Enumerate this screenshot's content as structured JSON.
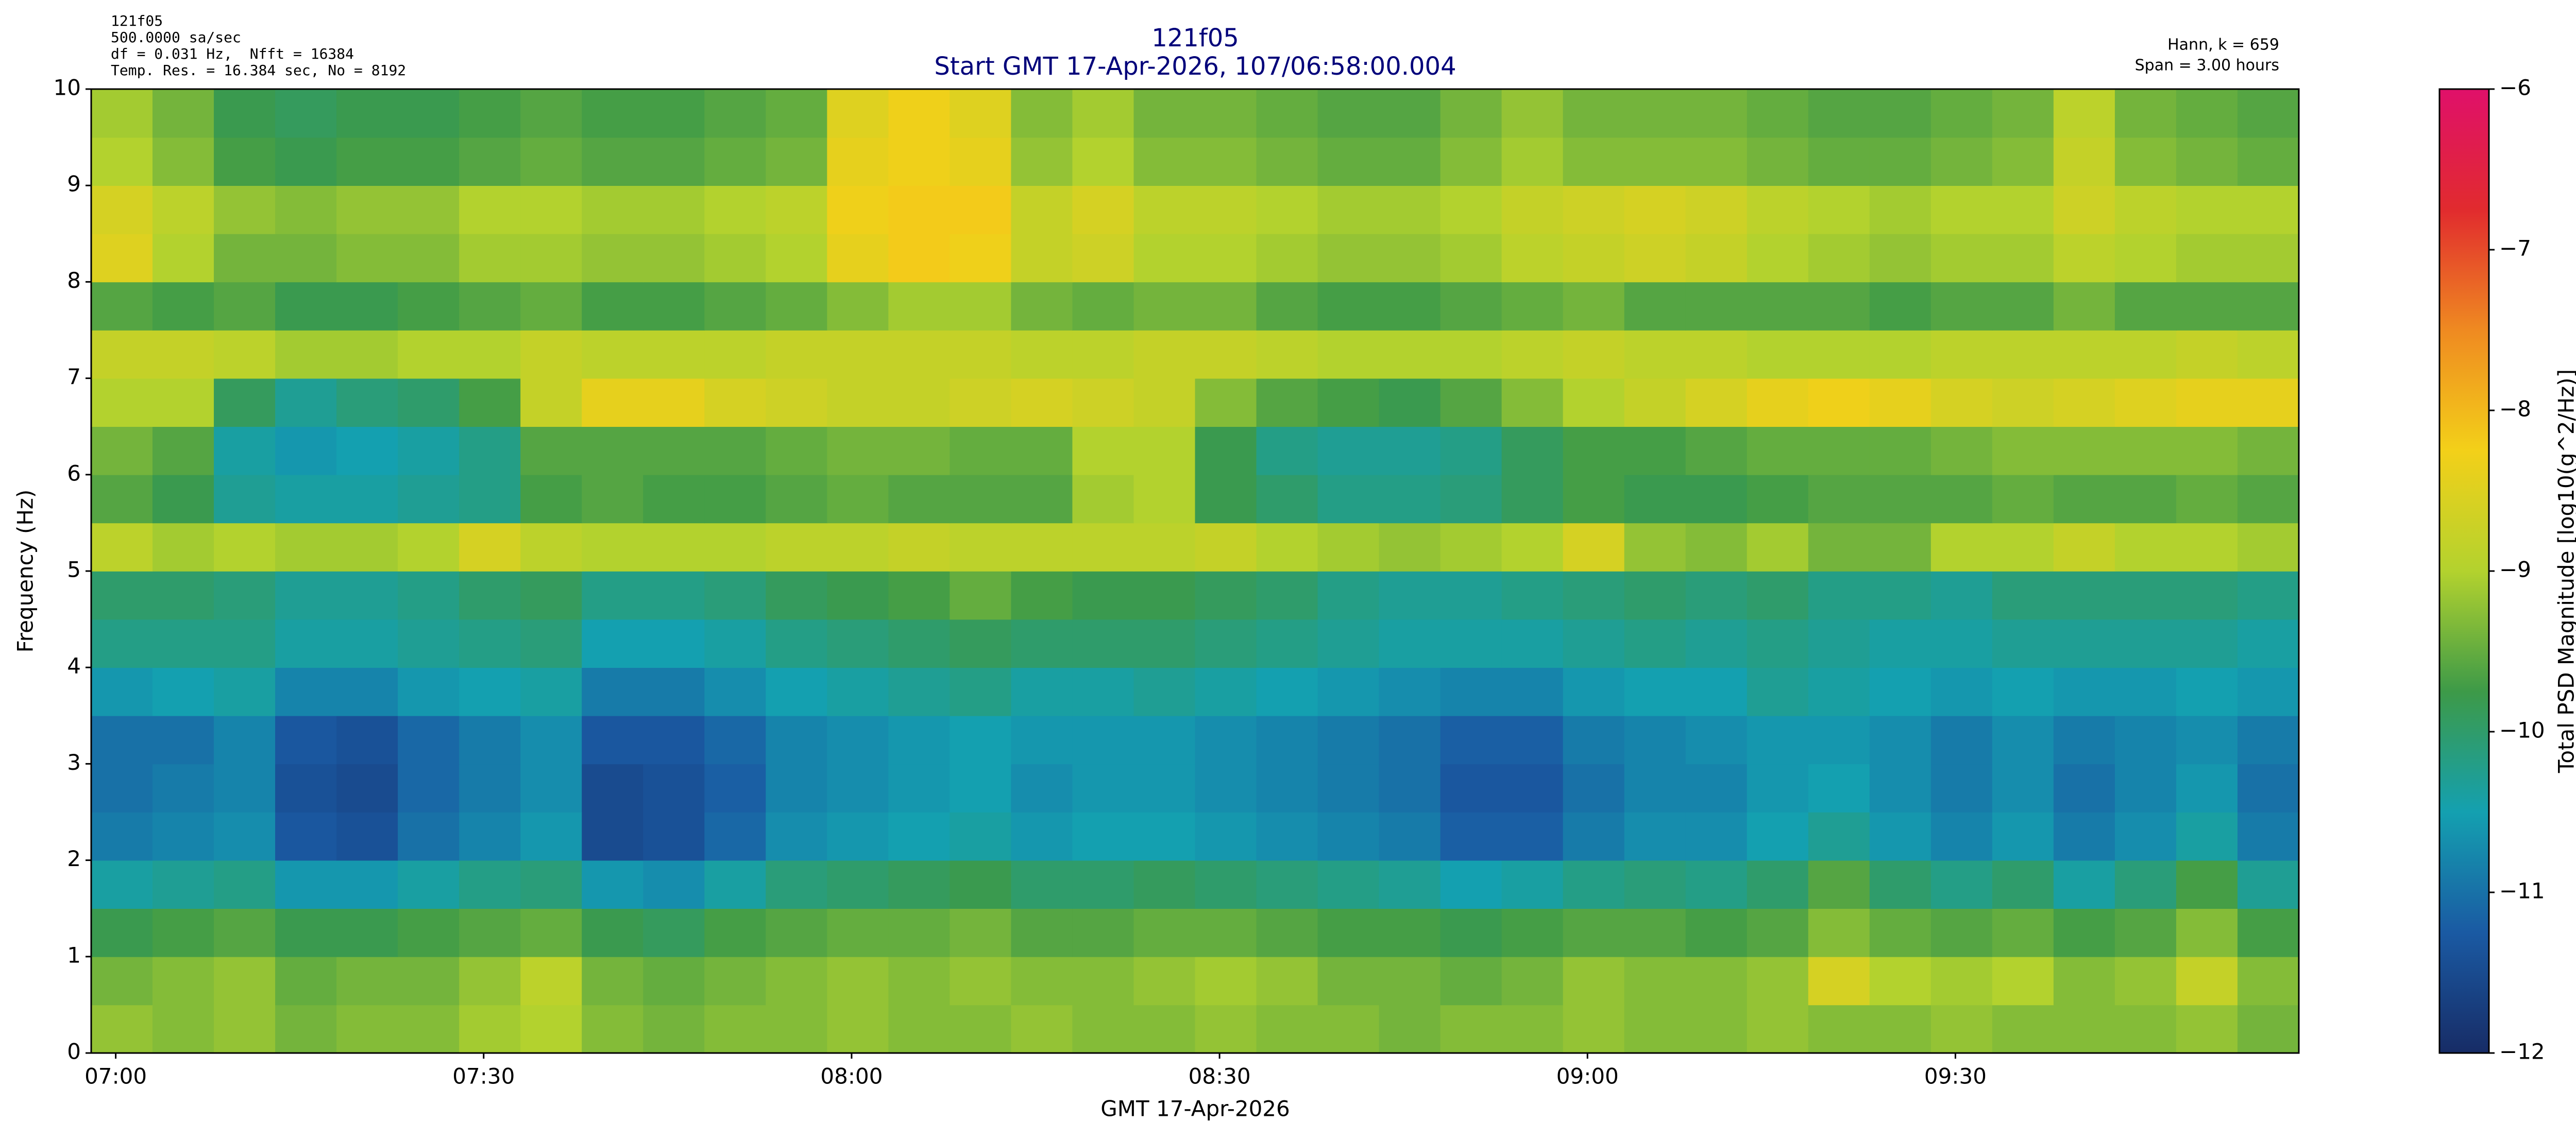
{
  "chart_data": {
    "type": "heatmap",
    "title": "121f05",
    "subtitle": "Start GMT 17-Apr-2026, 107/06:58:00.004",
    "info_left": [
      "121f05",
      "500.0000 sa/sec",
      "df = 0.031 Hz,  Nfft = 16384",
      "Temp. Res. = 16.384 sec, No = 8192"
    ],
    "info_right": [
      "Hann, k = 659",
      "Span = 3.00 hours"
    ],
    "xlabel": "GMT 17-Apr-2026",
    "ylabel": "Frequency (Hz)",
    "colorbar_label": "Total PSD Magnitude [log10(g^2/Hz)]",
    "x": [
      "06:58",
      "07:03",
      "07:08",
      "07:13",
      "07:18",
      "07:23",
      "07:28",
      "07:33",
      "07:38",
      "07:43",
      "07:48",
      "07:53",
      "07:58",
      "08:03",
      "08:08",
      "08:13",
      "08:18",
      "08:23",
      "08:28",
      "08:33",
      "08:38",
      "08:43",
      "08:48",
      "08:53",
      "08:58",
      "09:03",
      "09:08",
      "09:13",
      "09:18",
      "09:23",
      "09:28",
      "09:33",
      "09:38",
      "09:43",
      "09:48",
      "09:53"
    ],
    "xlim": [
      "06:58",
      "09:58"
    ],
    "xticks": [
      "07:00",
      "07:30",
      "08:00",
      "08:30",
      "09:00",
      "09:30"
    ],
    "y": [
      0,
      0.5,
      1,
      1.5,
      2,
      2.5,
      3,
      3.5,
      4,
      4.5,
      5,
      5.5,
      6,
      6.5,
      7,
      7.5,
      8,
      8.5,
      9,
      9.5
    ],
    "ylim": [
      0,
      10
    ],
    "yticks": [
      0,
      1,
      2,
      3,
      4,
      5,
      6,
      7,
      8,
      9,
      10
    ],
    "clim": [
      -12,
      -6
    ],
    "cticks": [
      {
        "value": -12,
        "label": "−12"
      },
      {
        "value": -11,
        "label": "−11"
      },
      {
        "value": -10,
        "label": "−10"
      },
      {
        "value": -9,
        "label": "−9"
      },
      {
        "value": -8,
        "label": "−8"
      },
      {
        "value": -7,
        "label": "−7"
      },
      {
        "value": -6,
        "label": "−6"
      }
    ],
    "colormap": [
      "#172c66",
      "#1a5aa3",
      "#14a0b0",
      "#3d9a48",
      "#b3d22e",
      "#f3d019",
      "#ef8a21",
      "#e12b2e",
      "#e0106a"
    ],
    "values": [
      [
        -9.2,
        -9.3,
        -9.2,
        -9.4,
        -9.3,
        -9.3,
        -9.1,
        -9.0,
        -9.3,
        -9.4,
        -9.3,
        -9.3,
        -9.2,
        -9.3,
        -9.3,
        -9.2,
        -9.3,
        -9.3,
        -9.2,
        -9.3,
        -9.3,
        -9.4,
        -9.3,
        -9.3,
        -9.2,
        -9.3,
        -9.3,
        -9.2,
        -9.3,
        -9.3,
        -9.2,
        -9.3,
        -9.3,
        -9.3,
        -9.2,
        -9.4
      ],
      [
        -9.4,
        -9.3,
        -9.2,
        -9.5,
        -9.4,
        -9.4,
        -9.2,
        -8.9,
        -9.4,
        -9.5,
        -9.4,
        -9.3,
        -9.2,
        -9.3,
        -9.2,
        -9.3,
        -9.3,
        -9.2,
        -9.1,
        -9.2,
        -9.4,
        -9.4,
        -9.5,
        -9.4,
        -9.2,
        -9.3,
        -9.3,
        -9.2,
        -8.6,
        -9.0,
        -9.1,
        -9.0,
        -9.3,
        -9.2,
        -8.8,
        -9.3
      ],
      [
        -9.8,
        -9.7,
        -9.6,
        -9.8,
        -9.8,
        -9.7,
        -9.6,
        -9.5,
        -9.8,
        -9.9,
        -9.7,
        -9.6,
        -9.5,
        -9.5,
        -9.4,
        -9.6,
        -9.6,
        -9.5,
        -9.5,
        -9.6,
        -9.7,
        -9.7,
        -9.8,
        -9.7,
        -9.6,
        -9.6,
        -9.7,
        -9.6,
        -9.3,
        -9.5,
        -9.6,
        -9.5,
        -9.7,
        -9.6,
        -9.3,
        -9.7
      ],
      [
        -10.4,
        -10.3,
        -10.2,
        -10.6,
        -10.6,
        -10.4,
        -10.2,
        -10.1,
        -10.6,
        -10.7,
        -10.4,
        -10.1,
        -10.0,
        -9.9,
        -9.8,
        -10.0,
        -10.0,
        -9.9,
        -10.0,
        -10.1,
        -10.2,
        -10.3,
        -10.5,
        -10.4,
        -10.2,
        -10.1,
        -10.2,
        -10.0,
        -9.6,
        -10.0,
        -10.2,
        -10.0,
        -10.4,
        -10.1,
        -9.7,
        -10.3
      ],
      [
        -10.9,
        -10.8,
        -10.7,
        -11.3,
        -11.4,
        -11.0,
        -10.8,
        -10.6,
        -11.5,
        -11.4,
        -11.1,
        -10.7,
        -10.6,
        -10.5,
        -10.4,
        -10.6,
        -10.5,
        -10.5,
        -10.6,
        -10.7,
        -10.8,
        -10.9,
        -11.2,
        -11.2,
        -10.9,
        -10.7,
        -10.7,
        -10.5,
        -10.3,
        -10.6,
        -10.8,
        -10.6,
        -10.9,
        -10.7,
        -10.4,
        -10.9
      ],
      [
        -11.0,
        -10.9,
        -10.8,
        -11.4,
        -11.5,
        -11.1,
        -10.9,
        -10.7,
        -11.5,
        -11.4,
        -11.2,
        -10.8,
        -10.7,
        -10.6,
        -10.5,
        -10.7,
        -10.6,
        -10.6,
        -10.7,
        -10.8,
        -10.9,
        -11.0,
        -11.3,
        -11.3,
        -11.0,
        -10.8,
        -10.8,
        -10.6,
        -10.5,
        -10.7,
        -10.9,
        -10.7,
        -11.0,
        -10.8,
        -10.6,
        -11.0
      ],
      [
        -11.0,
        -11.0,
        -10.8,
        -11.3,
        -11.4,
        -11.1,
        -10.9,
        -10.7,
        -11.3,
        -11.3,
        -11.1,
        -10.8,
        -10.7,
        -10.6,
        -10.5,
        -10.6,
        -10.6,
        -10.6,
        -10.7,
        -10.8,
        -10.9,
        -11.0,
        -11.2,
        -11.2,
        -10.9,
        -10.8,
        -10.7,
        -10.6,
        -10.6,
        -10.7,
        -10.9,
        -10.7,
        -10.9,
        -10.8,
        -10.7,
        -10.9
      ],
      [
        -10.6,
        -10.5,
        -10.4,
        -10.8,
        -10.8,
        -10.6,
        -10.5,
        -10.4,
        -10.9,
        -10.9,
        -10.7,
        -10.5,
        -10.4,
        -10.3,
        -10.2,
        -10.4,
        -10.4,
        -10.3,
        -10.4,
        -10.5,
        -10.6,
        -10.7,
        -10.8,
        -10.8,
        -10.6,
        -10.5,
        -10.5,
        -10.3,
        -10.4,
        -10.5,
        -10.6,
        -10.5,
        -10.6,
        -10.6,
        -10.5,
        -10.6
      ],
      [
        -10.2,
        -10.2,
        -10.2,
        -10.4,
        -10.4,
        -10.3,
        -10.2,
        -10.1,
        -10.5,
        -10.5,
        -10.4,
        -10.2,
        -10.1,
        -10.0,
        -9.9,
        -10.0,
        -10.0,
        -10.0,
        -10.1,
        -10.2,
        -10.3,
        -10.4,
        -10.4,
        -10.4,
        -10.3,
        -10.2,
        -10.3,
        -10.2,
        -10.3,
        -10.4,
        -10.4,
        -10.3,
        -10.3,
        -10.3,
        -10.3,
        -10.4
      ],
      [
        -10.0,
        -10.0,
        -10.1,
        -10.3,
        -10.3,
        -10.2,
        -10.0,
        -9.9,
        -10.2,
        -10.2,
        -10.1,
        -9.9,
        -9.8,
        -9.7,
        -9.5,
        -9.7,
        -9.8,
        -9.8,
        -9.9,
        -10.0,
        -10.2,
        -10.3,
        -10.3,
        -10.2,
        -10.1,
        -10.0,
        -10.1,
        -10.0,
        -10.2,
        -10.2,
        -10.3,
        -10.1,
        -10.1,
        -10.1,
        -10.1,
        -10.2
      ],
      [
        -8.9,
        -9.1,
        -9.0,
        -9.1,
        -9.1,
        -9.0,
        -8.6,
        -8.9,
        -9.0,
        -9.0,
        -9.0,
        -8.9,
        -8.9,
        -8.8,
        -8.9,
        -8.9,
        -8.9,
        -8.9,
        -8.8,
        -9.0,
        -9.1,
        -9.2,
        -9.1,
        -9.0,
        -8.6,
        -9.2,
        -9.3,
        -9.1,
        -9.4,
        -9.4,
        -9.0,
        -9.0,
        -8.8,
        -9.0,
        -9.0,
        -9.1
      ],
      [
        -9.6,
        -9.8,
        -10.3,
        -10.4,
        -10.4,
        -10.3,
        -10.2,
        -9.7,
        -9.6,
        -9.7,
        -9.7,
        -9.6,
        -9.5,
        -9.6,
        -9.6,
        -9.6,
        -9.1,
        -9.0,
        -9.8,
        -10.0,
        -10.2,
        -10.2,
        -10.1,
        -9.9,
        -9.7,
        -9.8,
        -9.8,
        -9.7,
        -9.6,
        -9.6,
        -9.6,
        -9.5,
        -9.6,
        -9.6,
        -9.5,
        -9.6
      ],
      [
        -9.4,
        -9.6,
        -10.4,
        -10.6,
        -10.5,
        -10.4,
        -10.2,
        -9.6,
        -9.6,
        -9.6,
        -9.6,
        -9.5,
        -9.4,
        -9.4,
        -9.5,
        -9.5,
        -9.0,
        -9.0,
        -9.8,
        -10.2,
        -10.3,
        -10.3,
        -10.2,
        -9.9,
        -9.7,
        -9.7,
        -9.6,
        -9.5,
        -9.5,
        -9.5,
        -9.4,
        -9.3,
        -9.3,
        -9.3,
        -9.3,
        -9.4
      ],
      [
        -9.0,
        -9.0,
        -9.9,
        -10.3,
        -10.1,
        -10.0,
        -9.7,
        -8.8,
        -8.4,
        -8.4,
        -8.6,
        -8.7,
        -8.8,
        -8.8,
        -8.7,
        -8.6,
        -8.7,
        -8.8,
        -9.3,
        -9.6,
        -9.7,
        -9.8,
        -9.6,
        -9.3,
        -9.0,
        -8.8,
        -8.6,
        -8.4,
        -8.3,
        -8.4,
        -8.6,
        -8.7,
        -8.6,
        -8.5,
        -8.4,
        -8.4
      ],
      [
        -8.8,
        -8.8,
        -8.9,
        -9.1,
        -9.1,
        -9.0,
        -9.0,
        -8.8,
        -8.9,
        -8.9,
        -8.9,
        -8.8,
        -8.8,
        -8.8,
        -8.8,
        -8.9,
        -8.9,
        -8.8,
        -8.8,
        -8.9,
        -9.0,
        -9.0,
        -9.0,
        -8.9,
        -8.8,
        -8.9,
        -8.9,
        -9.0,
        -9.0,
        -9.0,
        -8.9,
        -8.9,
        -8.9,
        -8.9,
        -8.8,
        -8.9
      ],
      [
        -9.6,
        -9.7,
        -9.6,
        -9.8,
        -9.8,
        -9.7,
        -9.6,
        -9.5,
        -9.7,
        -9.7,
        -9.6,
        -9.5,
        -9.3,
        -9.1,
        -9.1,
        -9.4,
        -9.5,
        -9.4,
        -9.4,
        -9.6,
        -9.7,
        -9.7,
        -9.6,
        -9.5,
        -9.4,
        -9.6,
        -9.6,
        -9.6,
        -9.6,
        -9.7,
        -9.6,
        -9.6,
        -9.4,
        -9.6,
        -9.6,
        -9.6
      ],
      [
        -8.5,
        -9.0,
        -9.4,
        -9.4,
        -9.3,
        -9.3,
        -9.1,
        -9.1,
        -9.2,
        -9.2,
        -9.1,
        -9.0,
        -8.4,
        -8.2,
        -8.3,
        -8.8,
        -8.7,
        -9.0,
        -9.0,
        -9.1,
        -9.2,
        -9.2,
        -9.1,
        -8.9,
        -8.8,
        -8.7,
        -8.8,
        -9.0,
        -9.1,
        -9.2,
        -9.1,
        -9.1,
        -8.9,
        -9.0,
        -9.1,
        -9.1
      ],
      [
        -8.6,
        -8.9,
        -9.2,
        -9.3,
        -9.2,
        -9.2,
        -9.0,
        -9.0,
        -9.1,
        -9.1,
        -9.0,
        -8.9,
        -8.3,
        -8.2,
        -8.2,
        -8.8,
        -8.6,
        -8.9,
        -8.9,
        -9.0,
        -9.1,
        -9.1,
        -9.0,
        -8.8,
        -8.7,
        -8.6,
        -8.7,
        -8.9,
        -9.0,
        -9.1,
        -9.0,
        -9.0,
        -8.7,
        -8.9,
        -9.0,
        -9.0
      ],
      [
        -9.0,
        -9.3,
        -9.7,
        -9.8,
        -9.7,
        -9.7,
        -9.6,
        -9.5,
        -9.6,
        -9.6,
        -9.5,
        -9.4,
        -8.4,
        -8.3,
        -8.4,
        -9.2,
        -9.0,
        -9.3,
        -9.3,
        -9.4,
        -9.5,
        -9.5,
        -9.3,
        -9.1,
        -9.3,
        -9.3,
        -9.3,
        -9.4,
        -9.5,
        -9.5,
        -9.4,
        -9.3,
        -8.8,
        -9.3,
        -9.4,
        -9.5
      ],
      [
        -9.1,
        -9.4,
        -9.8,
        -9.9,
        -9.8,
        -9.8,
        -9.7,
        -9.6,
        -9.7,
        -9.7,
        -9.6,
        -9.5,
        -8.5,
        -8.3,
        -8.5,
        -9.3,
        -9.1,
        -9.4,
        -9.4,
        -9.5,
        -9.6,
        -9.6,
        -9.4,
        -9.2,
        -9.4,
        -9.4,
        -9.4,
        -9.5,
        -9.6,
        -9.6,
        -9.5,
        -9.4,
        -8.9,
        -9.4,
        -9.5,
        -9.6
      ]
    ]
  }
}
